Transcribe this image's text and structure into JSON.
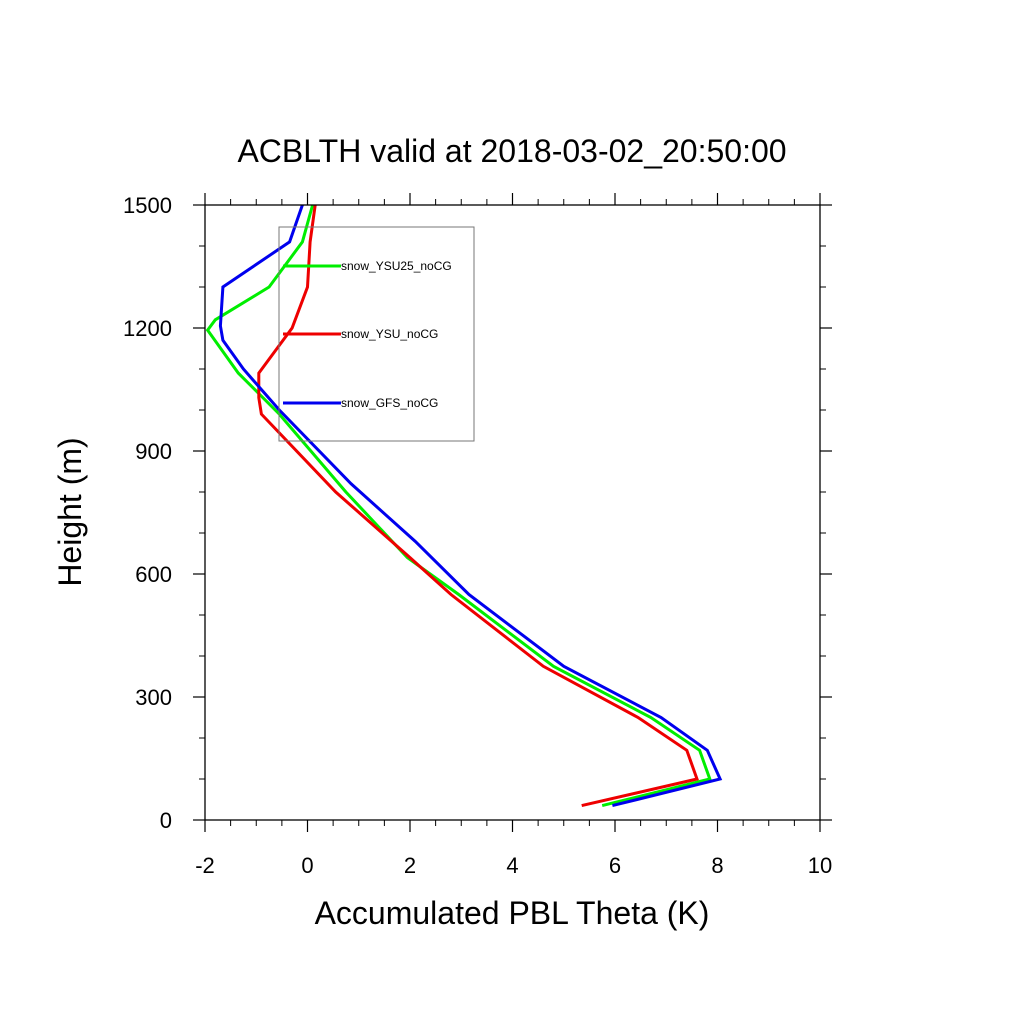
{
  "chart_data": {
    "type": "line",
    "title": "ACBLTH valid at 2018-03-02_20:50:00",
    "xlabel": "Accumulated PBL Theta (K)",
    "ylabel": "Height (m)",
    "xlim": [
      -2,
      10
    ],
    "ylim": [
      0,
      1500
    ],
    "xticks": [
      -2,
      0,
      2,
      4,
      6,
      8,
      10
    ],
    "yticks": [
      0,
      300,
      600,
      900,
      1200,
      1500
    ],
    "xtick_labels": [
      "-2",
      "0",
      "2",
      "4",
      "6",
      "8",
      "10"
    ],
    "ytick_labels": [
      "0",
      "300",
      "600",
      "900",
      "1200",
      "1500"
    ],
    "grid": false,
    "legend_position": "top-left inside",
    "series": [
      {
        "name": "snow_YSU25_noCG",
        "color": "#00ee00",
        "x": [
          5.75,
          7.85,
          7.65,
          6.7,
          4.8,
          2.95,
          1.95,
          0.75,
          -0.55,
          -1.35,
          -1.95,
          -1.8,
          -0.75,
          -0.1,
          0.1
        ],
        "y": [
          35,
          100,
          170,
          250,
          375,
          550,
          640,
          800,
          990,
          1090,
          1195,
          1220,
          1300,
          1410,
          1500
        ]
      },
      {
        "name": "snow_YSU_noCG",
        "color": "#ee0000",
        "x": [
          5.35,
          7.6,
          7.4,
          6.45,
          4.6,
          2.8,
          2.0,
          0.55,
          -0.9,
          -0.95,
          -0.95,
          -0.3,
          0.0,
          0.05,
          0.15
        ],
        "y": [
          35,
          100,
          170,
          250,
          375,
          550,
          640,
          800,
          990,
          1030,
          1090,
          1200,
          1300,
          1410,
          1500
        ]
      },
      {
        "name": "snow_GFS_noCG",
        "color": "#0000ee",
        "x": [
          5.95,
          8.05,
          7.8,
          6.9,
          5.0,
          3.15,
          2.1,
          0.85,
          -0.55,
          -1.25,
          -1.65,
          -1.7,
          -1.65,
          -0.35,
          -0.1
        ],
        "y": [
          35,
          100,
          170,
          250,
          375,
          550,
          680,
          820,
          1000,
          1100,
          1170,
          1205,
          1300,
          1410,
          1500
        ]
      }
    ]
  }
}
